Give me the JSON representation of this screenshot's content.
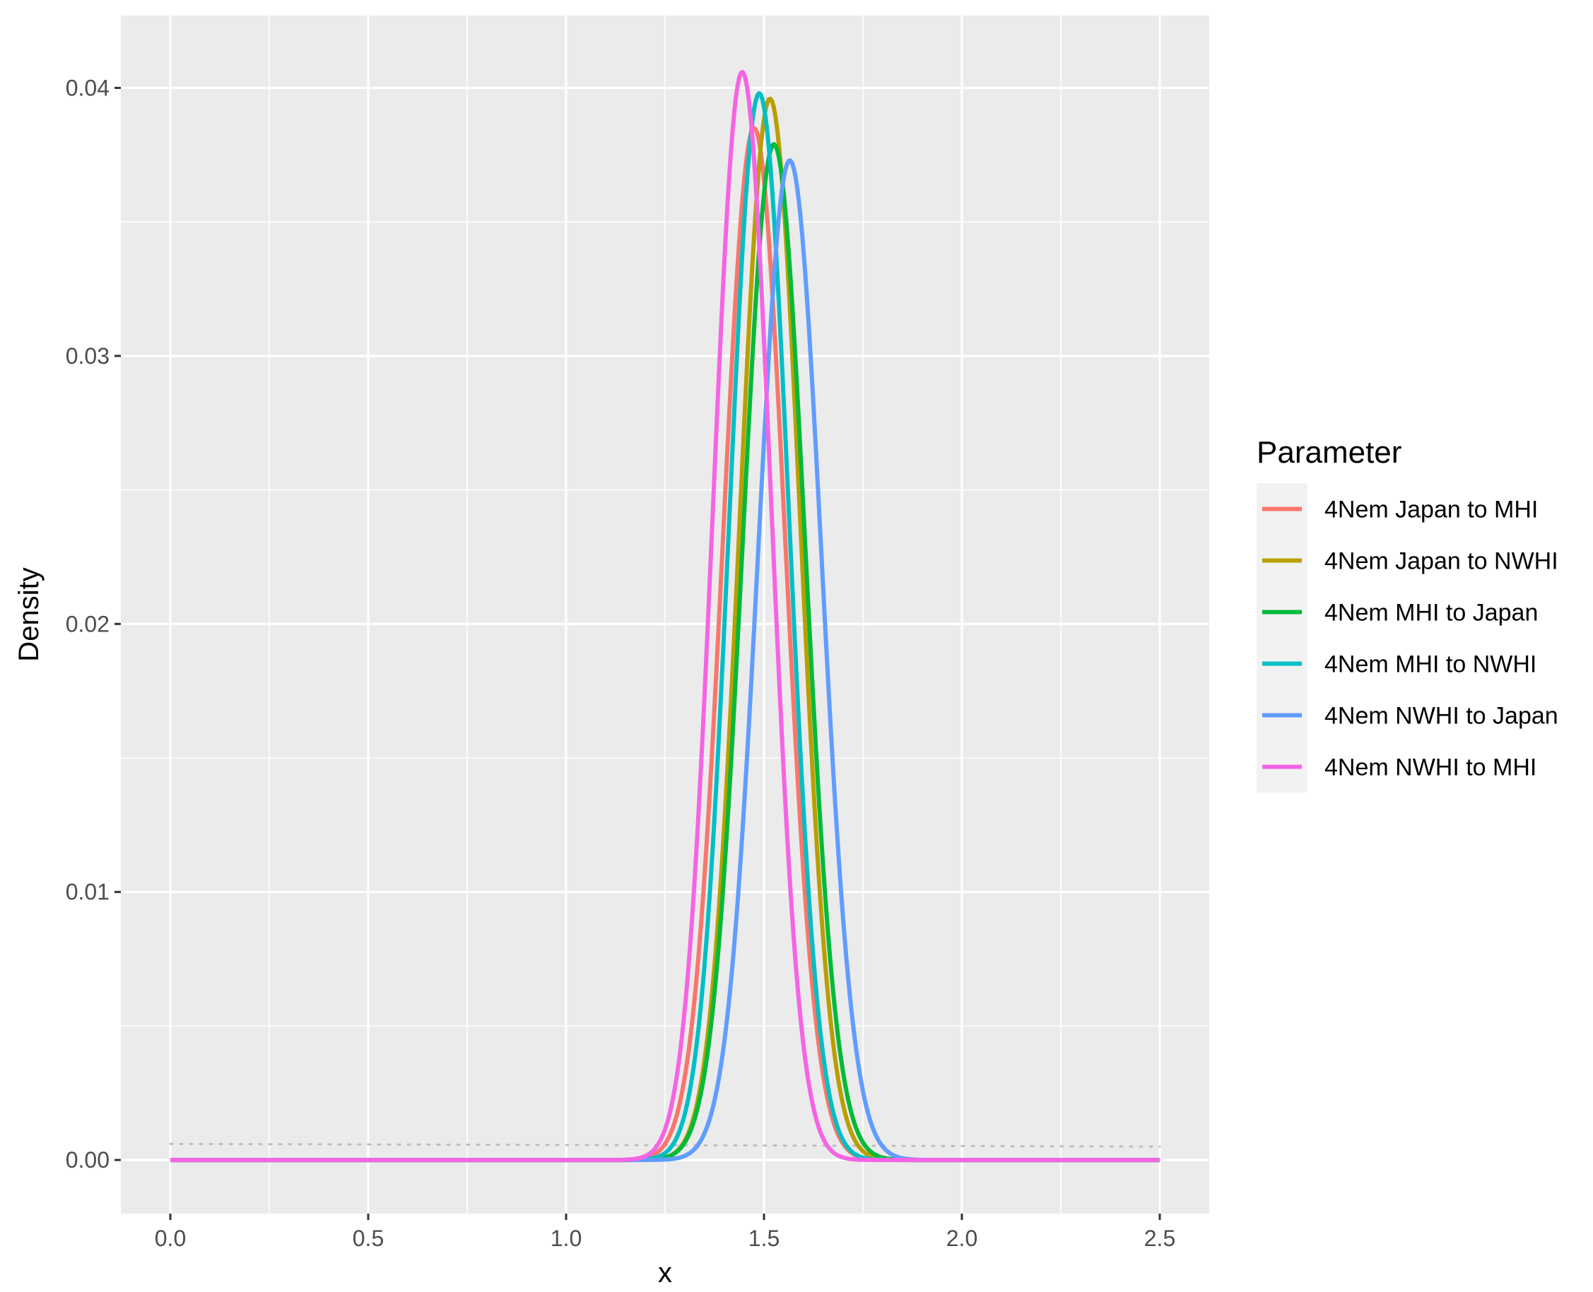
{
  "chart_data": {
    "type": "line",
    "title": "",
    "xlabel": "x",
    "ylabel": "Density",
    "xlim": [
      -0.125,
      2.625
    ],
    "ylim": [
      -0.002,
      0.0427
    ],
    "x_ticks": [
      0.0,
      0.5,
      1.0,
      1.5,
      2.0,
      2.5
    ],
    "x_tick_labels": [
      "0.0",
      "0.5",
      "1.0",
      "1.5",
      "2.0",
      "2.5"
    ],
    "y_ticks": [
      0.0,
      0.01,
      0.02,
      0.03,
      0.04
    ],
    "y_tick_labels": [
      "0.00",
      "0.01",
      "0.02",
      "0.03",
      "0.04"
    ],
    "grid": true,
    "legend": {
      "title": "Parameter",
      "placement": "right"
    },
    "x_domain": [
      0,
      2.5
    ],
    "series": [
      {
        "name": "4Nem Japan to MHI",
        "color": "#F8766D",
        "peak_x": 1.475,
        "peak_y": 0.0385,
        "sd": 0.078
      },
      {
        "name": "4Nem Japan to NWHI",
        "color": "#B79F00",
        "peak_x": 1.515,
        "peak_y": 0.0396,
        "sd": 0.076
      },
      {
        "name": "4Nem MHI to Japan",
        "color": "#00BA38",
        "peak_x": 1.525,
        "peak_y": 0.0379,
        "sd": 0.079
      },
      {
        "name": "4Nem MHI to NWHI",
        "color": "#00BFC4",
        "peak_x": 1.488,
        "peak_y": 0.0398,
        "sd": 0.075
      },
      {
        "name": "4Nem NWHI to Japan",
        "color": "#619CFF",
        "peak_x": 1.565,
        "peak_y": 0.0373,
        "sd": 0.08
      },
      {
        "name": "4Nem NWHI to MHI",
        "color": "#F564E3",
        "peak_x": 1.445,
        "peak_y": 0.0406,
        "sd": 0.073
      }
    ],
    "reference_line": {
      "style": "dotted",
      "color": "#bdbdbd",
      "y_start": 0.0006,
      "y_end": 0.0005
    }
  }
}
